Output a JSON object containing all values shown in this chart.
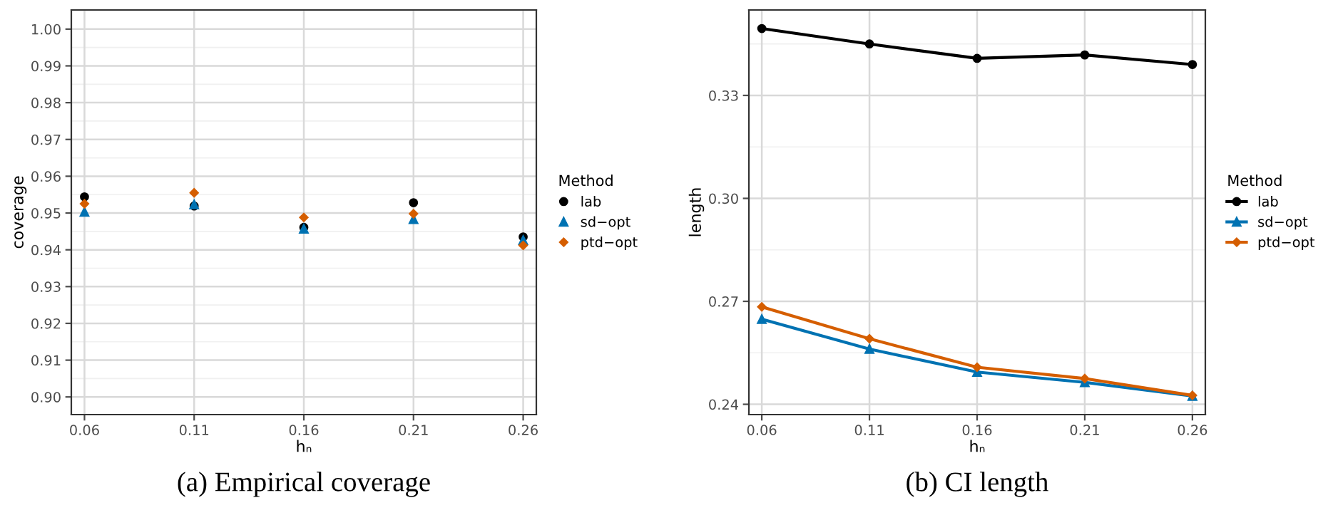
{
  "chart_data": [
    {
      "type": "scatter",
      "xlabel": "hₙ",
      "ylabel": "coverage",
      "legend_title": "Method",
      "legend": "right",
      "grid": true,
      "x": [
        0.06,
        0.11,
        0.16,
        0.21,
        0.26
      ],
      "xlim": [
        0.054,
        0.266
      ],
      "xticks": [
        0.06,
        0.11,
        0.16,
        0.21,
        0.26
      ],
      "ylim": [
        0.8952,
        1.0052
      ],
      "yticks": [
        {
          "value": 0.9,
          "label": "0.90"
        },
        {
          "value": 0.91,
          "label": "0.91"
        },
        {
          "value": 0.92,
          "label": "0.92"
        },
        {
          "value": 0.93,
          "label": "0.93"
        },
        {
          "value": 0.94,
          "label": "0.94"
        },
        {
          "value": 0.95,
          "label": "0.95"
        },
        {
          "value": 0.96,
          "label": "0.96"
        },
        {
          "value": 0.97,
          "label": "0.97"
        },
        {
          "value": 0.98,
          "label": "0.98"
        },
        {
          "value": 0.99,
          "label": "0.99"
        },
        {
          "value": 1.0,
          "label": "1.00"
        }
      ],
      "series": [
        {
          "name": "lab",
          "color": "#000000",
          "marker": "circle",
          "values": [
            0.9544,
            0.9519,
            0.9461,
            0.9528,
            0.9435
          ]
        },
        {
          "name": "sd−opt",
          "color": "#0072b2",
          "marker": "triangle",
          "values": [
            0.9503,
            0.9523,
            0.9457,
            0.9483,
            0.9426
          ]
        },
        {
          "name": "ptd−opt",
          "color": "#d55e00",
          "marker": "diamond",
          "values": [
            0.9525,
            0.9555,
            0.9488,
            0.9498,
            0.9412
          ]
        }
      ],
      "annotations": [
        "(a) Empirical coverage"
      ]
    },
    {
      "type": "line",
      "xlabel": "hₙ",
      "ylabel": "length",
      "legend_title": "Method",
      "legend": "right",
      "grid": true,
      "x": [
        0.06,
        0.11,
        0.16,
        0.21,
        0.26
      ],
      "xlim": [
        0.054,
        0.266
      ],
      "xticks": [
        0.06,
        0.11,
        0.16,
        0.21,
        0.26
      ],
      "ylim": [
        0.237,
        0.3549
      ],
      "yticks": [
        0.24,
        0.27,
        {
          "value": 0.3,
          "label": "0.30"
        },
        0.33
      ],
      "series": [
        {
          "name": "lab",
          "color": "#000000",
          "marker": "circle",
          "values": [
            0.3495,
            0.345,
            0.3408,
            0.3418,
            0.339
          ]
        },
        {
          "name": "sd−opt",
          "color": "#0072b2",
          "marker": "triangle",
          "values": [
            0.2648,
            0.2561,
            0.2494,
            0.2464,
            0.2424
          ]
        },
        {
          "name": "ptd−opt",
          "color": "#d55e00",
          "marker": "diamond",
          "values": [
            0.2684,
            0.2591,
            0.2508,
            0.2475,
            0.2426
          ]
        }
      ],
      "annotations": [
        "(b) CI length"
      ]
    }
  ]
}
